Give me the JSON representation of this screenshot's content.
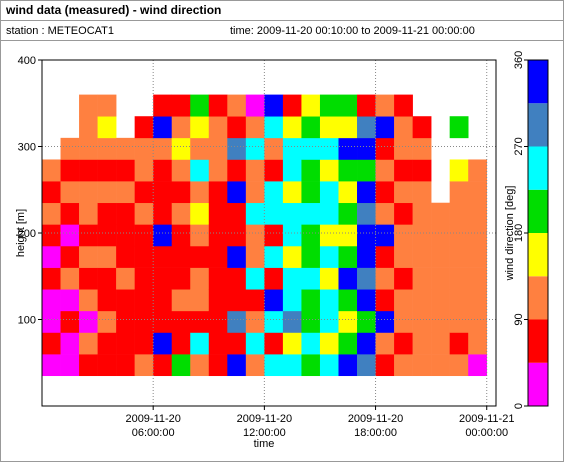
{
  "chart_data": {
    "type": "heatmap",
    "title": "wind data (measured) - wind direction",
    "station": "station : METEOCAT1",
    "time_range": "time: 2009-11-20 00:10:00 to 2009-11-21 00:00:00",
    "x_label": "time",
    "y_label": "height [m]",
    "colorbar_label": "wind direction [deg]",
    "xlim": [
      0,
      24.5
    ],
    "xticks": [
      {
        "value": 6,
        "label": "2009-11-20 06:00:00"
      },
      {
        "value": 12,
        "label": "2009-11-20 12:00:00"
      },
      {
        "value": 18,
        "label": "2009-11-20 18:00:00"
      },
      {
        "value": 24,
        "label": "2009-11-21 00:00:00"
      }
    ],
    "ylim": [
      0,
      400
    ],
    "yticks": [
      100,
      200,
      300,
      400
    ],
    "grid": true,
    "x": [
      0,
      1,
      2,
      3,
      4,
      5,
      6,
      7,
      8,
      9,
      10,
      11,
      12,
      13,
      14,
      15,
      16,
      17,
      18,
      19,
      20,
      21,
      22,
      23
    ],
    "y": [
      35,
      60,
      85,
      110,
      135,
      160,
      185,
      210,
      235,
      260,
      285,
      310,
      335
    ],
    "clim": [
      0,
      360
    ],
    "cticks": [
      0,
      90,
      180,
      270,
      360
    ],
    "colors": [
      "#ff00ff",
      "#ff0000",
      "#ff8040",
      "#ffff00",
      "#00dd00",
      "#00ffff",
      "#4080c0",
      "#0000ff"
    ],
    "z": [
      [
        20,
        70,
        20,
        20,
        70,
        20,
        70,
        110,
        70,
        110,
        null,
        null,
        null
      ],
      [
        20,
        20,
        70,
        20,
        110,
        70,
        20,
        70,
        110,
        70,
        110,
        null,
        null
      ],
      [
        70,
        110,
        20,
        110,
        70,
        110,
        70,
        110,
        110,
        70,
        110,
        110,
        110
      ],
      [
        70,
        70,
        110,
        70,
        70,
        110,
        70,
        70,
        110,
        70,
        110,
        160,
        110
      ],
      [
        70,
        70,
        70,
        70,
        110,
        70,
        70,
        70,
        110,
        70,
        110,
        null,
        null
      ],
      [
        110,
        70,
        70,
        70,
        70,
        70,
        70,
        110,
        70,
        110,
        110,
        70,
        null
      ],
      [
        70,
        340,
        70,
        70,
        70,
        70,
        340,
        70,
        70,
        70,
        110,
        340,
        70
      ],
      [
        200,
        70,
        70,
        110,
        70,
        70,
        70,
        110,
        70,
        110,
        160,
        110,
        70
      ],
      [
        110,
        250,
        70,
        110,
        110,
        70,
        110,
        160,
        110,
        250,
        110,
        160,
        200
      ],
      [
        70,
        70,
        70,
        70,
        70,
        70,
        70,
        70,
        70,
        110,
        110,
        110,
        70
      ],
      [
        340,
        70,
        290,
        70,
        70,
        340,
        70,
        70,
        340,
        70,
        290,
        70,
        110
      ],
      [
        110,
        250,
        110,
        70,
        250,
        110,
        110,
        250,
        110,
        110,
        250,
        110,
        20
      ],
      [
        250,
        70,
        250,
        340,
        70,
        250,
        70,
        250,
        250,
        70,
        110,
        250,
        340
      ],
      [
        250,
        160,
        290,
        250,
        250,
        160,
        250,
        250,
        160,
        250,
        250,
        160,
        70
      ],
      [
        200,
        250,
        200,
        200,
        250,
        200,
        200,
        250,
        200,
        200,
        250,
        200,
        160
      ],
      [
        250,
        160,
        250,
        250,
        160,
        250,
        160,
        250,
        250,
        160,
        250,
        160,
        200
      ],
      [
        340,
        200,
        160,
        200,
        340,
        200,
        160,
        200,
        160,
        200,
        340,
        160,
        200
      ],
      [
        290,
        340,
        200,
        340,
        290,
        340,
        340,
        290,
        340,
        200,
        340,
        290,
        70
      ],
      [
        70,
        110,
        340,
        70,
        110,
        70,
        340,
        110,
        70,
        110,
        70,
        340,
        110
      ],
      [
        110,
        70,
        110,
        110,
        70,
        110,
        110,
        70,
        110,
        70,
        110,
        110,
        70
      ],
      [
        110,
        110,
        110,
        110,
        110,
        110,
        110,
        110,
        110,
        70,
        110,
        70,
        null
      ],
      [
        110,
        110,
        110,
        110,
        110,
        110,
        110,
        110,
        null,
        null,
        null,
        null,
        null
      ],
      [
        110,
        70,
        110,
        110,
        110,
        110,
        110,
        110,
        110,
        160,
        null,
        200,
        null
      ],
      [
        20,
        110,
        110,
        110,
        110,
        110,
        110,
        110,
        110,
        110,
        null,
        null,
        null
      ]
    ]
  }
}
